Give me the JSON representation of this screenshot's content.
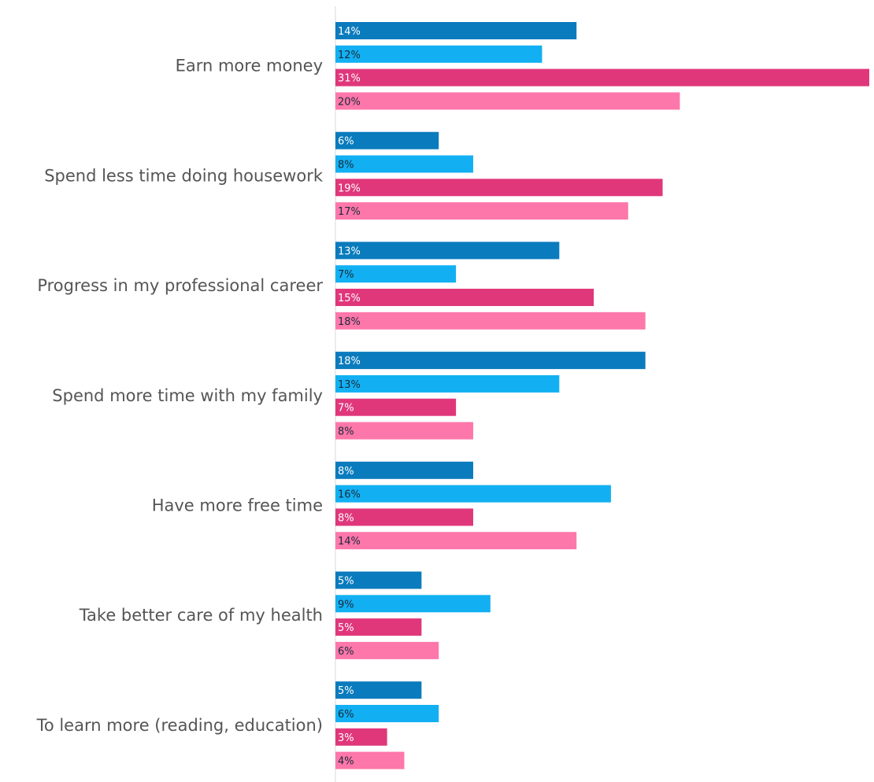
{
  "chart_data": {
    "type": "bar",
    "orientation": "horizontal",
    "categories": [
      "Earn more money",
      "Spend less time doing housework",
      "Progress in my professional career",
      "Spend more time with my family",
      "Have more free time",
      "Take better care of my health",
      "To learn more (reading, education)"
    ],
    "series": [
      {
        "values": [
          14,
          6,
          13,
          18,
          8,
          5,
          5
        ],
        "labels": [
          "14%",
          "6%",
          "13%",
          "18%",
          "8%",
          "5%",
          "5%"
        ],
        "color": "#0a7bbd",
        "label_color": "#ffffff"
      },
      {
        "values": [
          12,
          8,
          7,
          13,
          16,
          9,
          6
        ],
        "labels": [
          "12%",
          "8%",
          "7%",
          "13%",
          "16%",
          "9%",
          "6%"
        ],
        "color": "#12b0f3",
        "label_color": "#1a2a3a"
      },
      {
        "values": [
          31,
          19,
          15,
          7,
          8,
          5,
          3
        ],
        "labels": [
          "31%",
          "19%",
          "15%",
          "7%",
          "8%",
          "5%",
          "3%"
        ],
        "color": "#e0377b",
        "label_color": "#ffffff"
      },
      {
        "values": [
          20,
          17,
          18,
          8,
          14,
          6,
          4
        ],
        "labels": [
          "20%",
          "17%",
          "18%",
          "8%",
          "14%",
          "6%",
          "4%"
        ],
        "color": "#fe77aa",
        "label_color": "#1a2a3a"
      }
    ],
    "xlim": [
      0,
      31
    ],
    "grid": false,
    "legend": "none",
    "axis_line_color": "#d9d9d9",
    "category_label_color": "#555555"
  }
}
